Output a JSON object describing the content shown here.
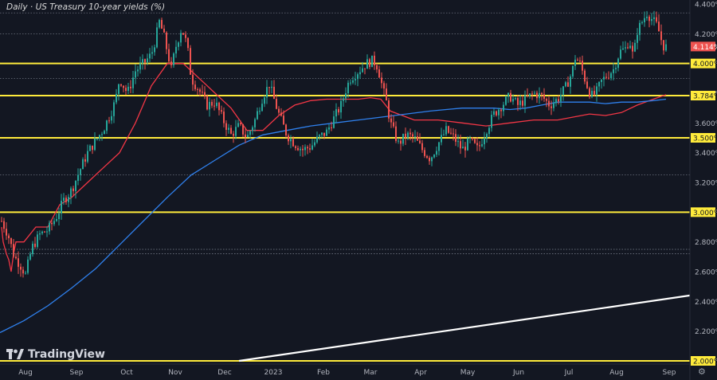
{
  "title": "Daily · US Treasury 10-year yields (%)",
  "branding": {
    "name": "TradingView"
  },
  "colors": {
    "background": "#131722",
    "bull": "#26a69a",
    "bear": "#ef5350",
    "ma_fast": "#f23645",
    "ma_slow": "#2f80ed",
    "support": "#ffeb3b",
    "trendline": "#ffffff"
  },
  "chart_data": {
    "type": "candlestick",
    "title": "Daily · US Treasury 10-year yields (%)",
    "x_labels": [
      "Aug",
      "Sep",
      "Oct",
      "Nov",
      "Dec",
      "2023",
      "Feb",
      "Mar",
      "Apr",
      "May",
      "Jun",
      "Jul",
      "Aug",
      "Sep"
    ],
    "y_ticks": [
      "4.400%",
      "4.200%",
      "4.000%",
      "3.800%",
      "3.600%",
      "3.400%",
      "3.200%",
      "3.000%",
      "2.800%",
      "2.600%",
      "2.400%",
      "2.200%",
      "2.000%"
    ],
    "ylim": [
      1.98,
      4.42
    ],
    "last_price": "4.114%",
    "horizontal_levels": [
      {
        "label": "4.000%",
        "value": 4.0
      },
      {
        "label": "3.784%",
        "value": 3.784
      },
      {
        "label": "3.500%",
        "value": 3.5
      },
      {
        "label": "3.000%",
        "value": 3.0
      },
      {
        "label": "2.000%",
        "value": 2.0
      }
    ],
    "dotted_levels": [
      4.34,
      4.2,
      3.9,
      3.25,
      2.75,
      2.72
    ],
    "trendline": {
      "from": [
        2.0,
        "Dec"
      ],
      "to": [
        2.44,
        "Sep"
      ]
    },
    "series": [
      {
        "values": [
          [
            2,
            2.9
          ],
          [
            4,
            2.8
          ],
          [
            8,
            2.72
          ],
          [
            11,
            2.68
          ],
          [
            14,
            2.6
          ],
          [
            17,
            2.72
          ],
          [
            20,
            2.8
          ],
          [
            30,
            2.8
          ],
          [
            45,
            2.9
          ],
          [
            60,
            2.9
          ],
          [
            75,
            3.05
          ],
          [
            90,
            3.1
          ],
          [
            110,
            3.2
          ],
          [
            130,
            3.3
          ],
          [
            150,
            3.4
          ],
          [
            170,
            3.6
          ],
          [
            190,
            3.85
          ],
          [
            210,
            4.0
          ],
          [
            230,
            4.0
          ],
          [
            250,
            3.9
          ],
          [
            270,
            3.8
          ],
          [
            290,
            3.7
          ],
          [
            310,
            3.55
          ],
          [
            330,
            3.55
          ],
          [
            350,
            3.65
          ],
          [
            370,
            3.72
          ],
          [
            390,
            3.75
          ],
          [
            410,
            3.76
          ],
          [
            430,
            3.76
          ],
          [
            450,
            3.76
          ],
          [
            465,
            3.77
          ],
          [
            478,
            3.76
          ],
          [
            490,
            3.68
          ],
          [
            520,
            3.62
          ],
          [
            550,
            3.62
          ],
          [
            580,
            3.6
          ],
          [
            610,
            3.58
          ],
          [
            640,
            3.6
          ],
          [
            670,
            3.62
          ],
          [
            700,
            3.62
          ],
          [
            720,
            3.64
          ],
          [
            740,
            3.66
          ],
          [
            760,
            3.65
          ],
          [
            780,
            3.67
          ],
          [
            800,
            3.72
          ],
          [
            820,
            3.76
          ],
          [
            836,
            3.79
          ]
        ]
      },
      {
        "values": [
          [
            0,
            2.19
          ],
          [
            30,
            2.27
          ],
          [
            60,
            2.37
          ],
          [
            90,
            2.49
          ],
          [
            120,
            2.62
          ],
          [
            150,
            2.78
          ],
          [
            180,
            2.94
          ],
          [
            210,
            3.1
          ],
          [
            240,
            3.25
          ],
          [
            270,
            3.35
          ],
          [
            300,
            3.45
          ],
          [
            330,
            3.52
          ],
          [
            360,
            3.55
          ],
          [
            390,
            3.58
          ],
          [
            420,
            3.6
          ],
          [
            450,
            3.62
          ],
          [
            480,
            3.64
          ],
          [
            510,
            3.66
          ],
          [
            540,
            3.68
          ],
          [
            560,
            3.69
          ],
          [
            580,
            3.7
          ],
          [
            600,
            3.7
          ],
          [
            620,
            3.7
          ],
          [
            640,
            3.69
          ],
          [
            660,
            3.7
          ],
          [
            680,
            3.72
          ],
          [
            700,
            3.74
          ],
          [
            720,
            3.74
          ],
          [
            740,
            3.74
          ],
          [
            760,
            3.73
          ],
          [
            780,
            3.74
          ],
          [
            800,
            3.74
          ],
          [
            820,
            3.75
          ],
          [
            836,
            3.76
          ]
        ]
      }
    ],
    "candle_path": [
      [
        2,
        2.94
      ],
      [
        10,
        2.85
      ],
      [
        18,
        2.7
      ],
      [
        25,
        2.65
      ],
      [
        32,
        2.58
      ],
      [
        40,
        2.76
      ],
      [
        50,
        2.85
      ],
      [
        60,
        2.88
      ],
      [
        70,
        2.96
      ],
      [
        80,
        3.08
      ],
      [
        90,
        3.15
      ],
      [
        100,
        3.28
      ],
      [
        110,
        3.4
      ],
      [
        120,
        3.48
      ],
      [
        130,
        3.56
      ],
      [
        140,
        3.68
      ],
      [
        145,
        3.75
      ],
      [
        150,
        3.9
      ],
      [
        160,
        3.8
      ],
      [
        170,
        3.95
      ],
      [
        180,
        4.0
      ],
      [
        190,
        4.06
      ],
      [
        195,
        4.16
      ],
      [
        200,
        4.28
      ],
      [
        205,
        4.2
      ],
      [
        210,
        4.08
      ],
      [
        215,
        3.96
      ],
      [
        220,
        4.1
      ],
      [
        228,
        4.24
      ],
      [
        235,
        4.12
      ],
      [
        240,
        3.9
      ],
      [
        250,
        3.82
      ],
      [
        260,
        3.72
      ],
      [
        270,
        3.74
      ],
      [
        280,
        3.62
      ],
      [
        290,
        3.52
      ],
      [
        300,
        3.58
      ],
      [
        310,
        3.5
      ],
      [
        320,
        3.62
      ],
      [
        330,
        3.78
      ],
      [
        338,
        3.86
      ],
      [
        345,
        3.74
      ],
      [
        350,
        3.66
      ],
      [
        360,
        3.52
      ],
      [
        370,
        3.46
      ],
      [
        380,
        3.42
      ],
      [
        390,
        3.44
      ],
      [
        400,
        3.5
      ],
      [
        410,
        3.54
      ],
      [
        420,
        3.64
      ],
      [
        428,
        3.72
      ],
      [
        435,
        3.84
      ],
      [
        440,
        3.9
      ],
      [
        450,
        3.95
      ],
      [
        460,
        4.0
      ],
      [
        468,
        4.02
      ],
      [
        474,
        3.98
      ],
      [
        480,
        3.84
      ],
      [
        485,
        3.74
      ],
      [
        490,
        3.6
      ],
      [
        500,
        3.46
      ],
      [
        510,
        3.52
      ],
      [
        520,
        3.5
      ],
      [
        530,
        3.42
      ],
      [
        540,
        3.36
      ],
      [
        550,
        3.46
      ],
      [
        560,
        3.55
      ],
      [
        570,
        3.5
      ],
      [
        580,
        3.42
      ],
      [
        590,
        3.48
      ],
      [
        600,
        3.42
      ],
      [
        610,
        3.55
      ],
      [
        620,
        3.66
      ],
      [
        630,
        3.72
      ],
      [
        640,
        3.78
      ],
      [
        650,
        3.72
      ],
      [
        660,
        3.76
      ],
      [
        670,
        3.8
      ],
      [
        680,
        3.78
      ],
      [
        690,
        3.72
      ],
      [
        700,
        3.76
      ],
      [
        710,
        3.84
      ],
      [
        718,
        3.94
      ],
      [
        722,
        4.04
      ],
      [
        728,
        4.0
      ],
      [
        735,
        3.88
      ],
      [
        742,
        3.78
      ],
      [
        748,
        3.8
      ],
      [
        755,
        3.88
      ],
      [
        762,
        3.92
      ],
      [
        770,
        3.96
      ],
      [
        778,
        4.08
      ],
      [
        785,
        4.1
      ],
      [
        790,
        4.16
      ],
      [
        795,
        4.04
      ],
      [
        800,
        4.22
      ],
      [
        806,
        4.28
      ],
      [
        812,
        4.34
      ],
      [
        818,
        4.3
      ],
      [
        824,
        4.26
      ],
      [
        828,
        4.2
      ],
      [
        832,
        4.12
      ],
      [
        836,
        4.11
      ]
    ]
  }
}
